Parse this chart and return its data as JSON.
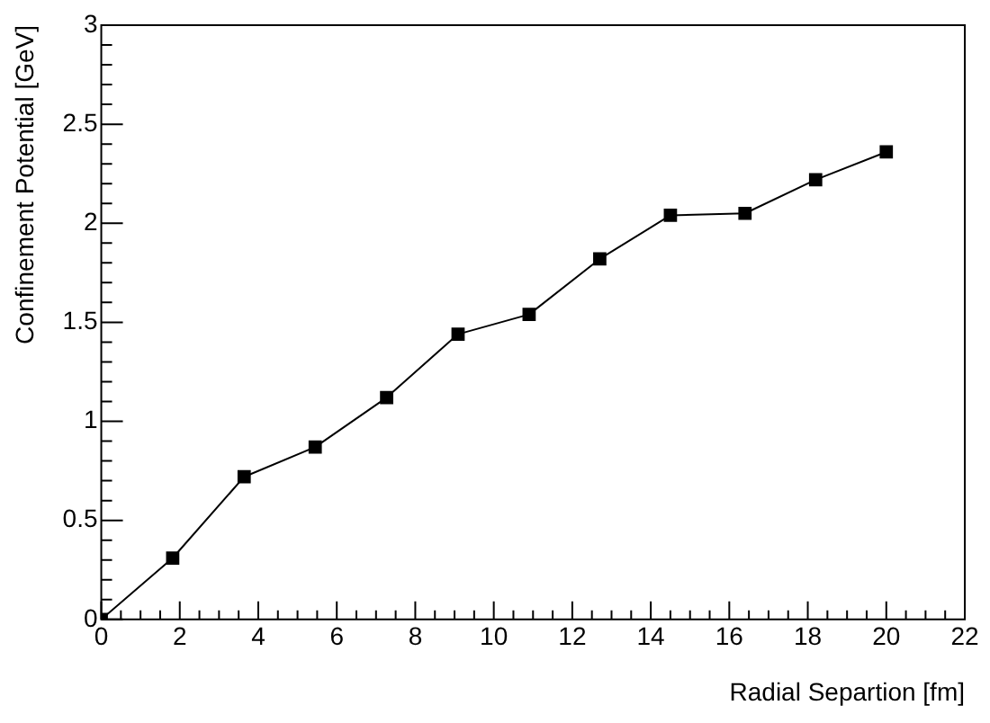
{
  "chart_data": {
    "type": "line",
    "xlabel": "Radial Separtion [fm]",
    "ylabel": "Confinement Potential [GeV]",
    "x": [
      0,
      1.82,
      3.64,
      5.45,
      7.27,
      9.09,
      10.9,
      12.7,
      14.5,
      16.4,
      18.2,
      20
    ],
    "series": [
      {
        "color": "#000000",
        "values": [
          0,
          0.31,
          0.72,
          0.87,
          1.12,
          1.44,
          1.54,
          1.82,
          2.04,
          2.05,
          2.22,
          2.36
        ]
      }
    ],
    "xlim": [
      0,
      22
    ],
    "xticks": [
      0,
      2,
      4,
      6,
      8,
      10,
      12,
      14,
      16,
      18,
      20,
      22
    ],
    "ylim": [
      0,
      3
    ],
    "yticks": [
      0,
      0.5,
      1,
      1.5,
      2,
      2.5,
      3
    ],
    "marker": "square",
    "line_style": "solid",
    "legend": false,
    "grid": false
  }
}
